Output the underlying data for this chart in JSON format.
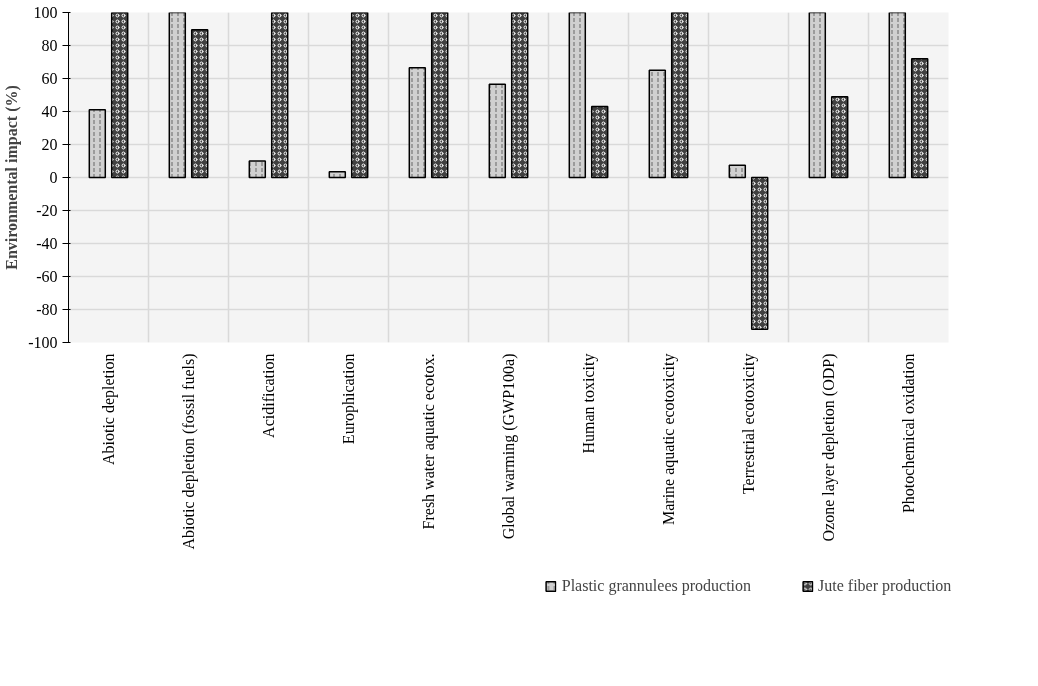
{
  "chart_data": {
    "type": "bar",
    "ylabel": "Environmental impact (%)",
    "categories": [
      "Abiotic depletion",
      "Abiotic depletion (fossil fuels)",
      "Acidification",
      "Europhication",
      "Fresh water aquatic ecotox.",
      "Global warming (GWP100a)",
      "Human toxicity",
      "Marine aquatic ecotoxicity",
      "Terrestrial ecotoxicity",
      "Ozone layer depletion (ODP)",
      "Photochemical oxidation"
    ],
    "series": [
      {
        "name": "Plastic grannulees production",
        "color": "#d0d0d0",
        "values": [
          41,
          100,
          10,
          3.5,
          66.5,
          56.5,
          100,
          65,
          7.5,
          100,
          100
        ]
      },
      {
        "name": "Jute fiber production",
        "color": "#404040",
        "values": [
          100,
          89.5,
          100,
          100,
          100,
          100,
          43,
          100,
          -92,
          49,
          72
        ]
      }
    ],
    "ylim": [
      -100,
      100
    ],
    "yticks": [
      -100,
      -80,
      -60,
      -40,
      -20,
      0,
      20,
      40,
      60,
      80,
      100
    ],
    "grid": true,
    "legend": "bottom"
  }
}
